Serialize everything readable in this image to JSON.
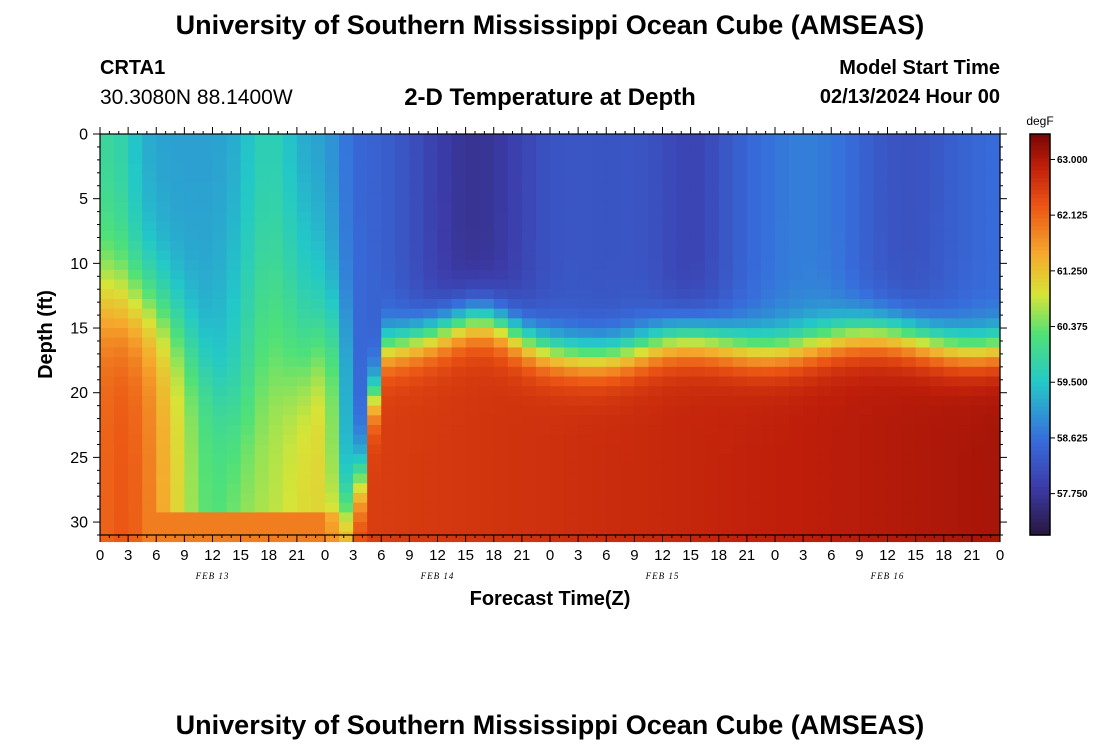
{
  "header": {
    "title": "University of Southern Mississippi Ocean Cube (AMSEAS)",
    "station_id": "CRTA1",
    "coords": "30.3080N  88.1400W",
    "chart_title": "2-D Temperature at Depth",
    "start_label": "Model Start Time",
    "start_value": "02/13/2024 Hour 00"
  },
  "footer": {
    "title": "University of Southern Mississippi Ocean Cube (AMSEAS)"
  },
  "chart_data": {
    "type": "heatmap",
    "title": "2-D Temperature at Depth",
    "xlabel": "Forecast Time(Z)",
    "ylabel": "Depth (ft)",
    "xlim": [
      0,
      96
    ],
    "ylim": [
      31,
      0
    ],
    "x_ticks": [
      0,
      3,
      6,
      9,
      12,
      15,
      18,
      21,
      24,
      27,
      30,
      33,
      36,
      39,
      42,
      45,
      48,
      51,
      54,
      57,
      60,
      63,
      66,
      69,
      72,
      75,
      78,
      81,
      84,
      87,
      90,
      93,
      96
    ],
    "x_tick_labels": [
      "0",
      "3",
      "6",
      "9",
      "12",
      "15",
      "18",
      "21",
      "0",
      "3",
      "6",
      "9",
      "12",
      "15",
      "18",
      "21",
      "0",
      "3",
      "6",
      "9",
      "12",
      "15",
      "18",
      "21",
      "0",
      "3",
      "6",
      "9",
      "12",
      "15",
      "18",
      "21",
      "0"
    ],
    "date_labels": [
      {
        "x": 12,
        "label": "FEB 13"
      },
      {
        "x": 36,
        "label": "FEB 14"
      },
      {
        "x": 60,
        "label": "FEB 15"
      },
      {
        "x": 84,
        "label": "FEB 16"
      }
    ],
    "y_ticks": [
      0,
      5,
      10,
      15,
      20,
      25,
      30
    ],
    "y_tick_labels": [
      "0",
      "5",
      "10",
      "15",
      "20",
      "25",
      "30"
    ],
    "colorbar": {
      "units": "degF",
      "min": 57.1,
      "max": 63.4,
      "tick_values": [
        57.75,
        58.625,
        59.5,
        60.375,
        61.25,
        62.125,
        63.0
      ],
      "tick_labels": [
        "57.750",
        "58.625",
        "59.500",
        "60.375",
        "61.250",
        "62.125",
        "63.000"
      ]
    },
    "grid": false,
    "legend": "colorbar-right"
  }
}
